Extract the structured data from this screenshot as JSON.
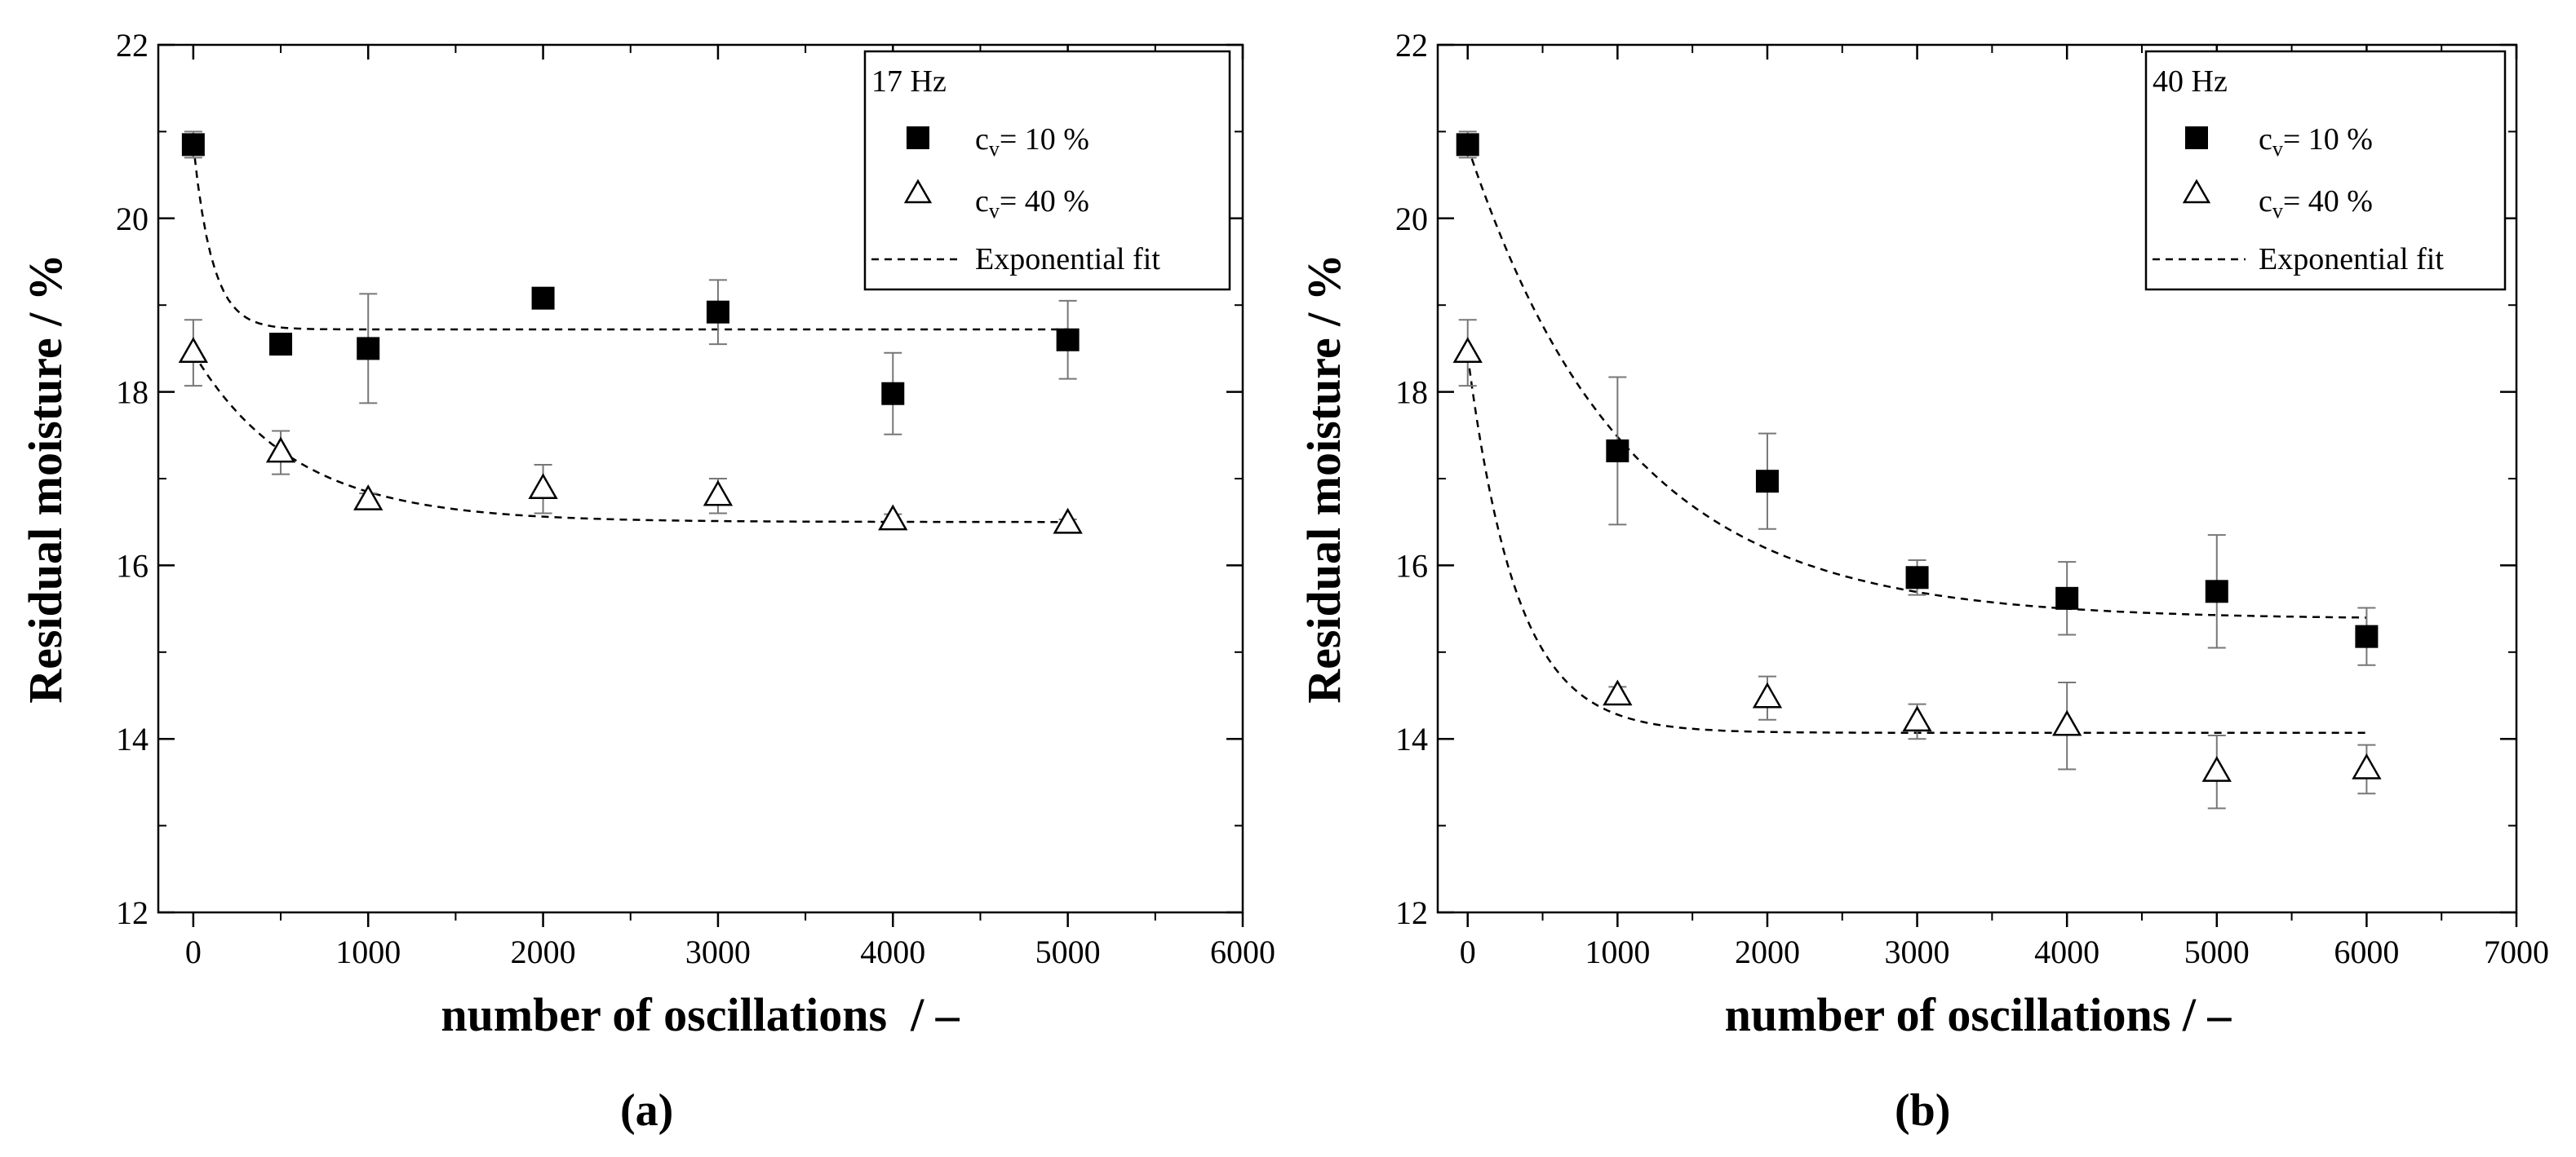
{
  "chart_data": [
    {
      "type": "scatter",
      "panel_label": "(a)",
      "xlabel": "number of oscillations  / –",
      "ylabel": "Residual moisture / %",
      "xlim": [
        -200,
        6000
      ],
      "ylim": [
        12,
        22
      ],
      "x_ticks": [
        0,
        1000,
        2000,
        3000,
        4000,
        5000,
        6000
      ],
      "x_tick_labels": [
        "0",
        "1000",
        "2000",
        "3000",
        "4000",
        "5000",
        "6000"
      ],
      "y_ticks": [
        12,
        14,
        16,
        18,
        20,
        22
      ],
      "y_tick_labels": [
        "12",
        "14",
        "16",
        "18",
        "20",
        "22"
      ],
      "legend": {
        "title": "17 Hz",
        "placement": "top-right",
        "entries": [
          {
            "symbol": "c",
            "sub": "v",
            "text": "= 10 %",
            "marker": "square"
          },
          {
            "symbol": "c",
            "sub": "v",
            "text": "= 40 %",
            "marker": "triangle"
          },
          {
            "text": "Exponential fit",
            "marker": "dashed-line"
          }
        ]
      },
      "series": [
        {
          "name": "cv = 10 %",
          "marker": "square-filled",
          "x": [
            0,
            500,
            1000,
            2000,
            3000,
            4000,
            5000
          ],
          "y": [
            20.85,
            18.55,
            18.5,
            19.08,
            18.92,
            17.98,
            18.6
          ],
          "err": [
            0.15,
            0.0,
            0.63,
            0.0,
            0.37,
            0.47,
            0.45
          ]
        },
        {
          "name": "cv = 40 %",
          "marker": "triangle-open",
          "x": [
            0,
            500,
            1000,
            2000,
            3000,
            4000,
            5000
          ],
          "y": [
            18.45,
            17.3,
            16.75,
            16.88,
            16.8,
            16.52,
            16.48
          ],
          "err": [
            0.38,
            0.25,
            0.08,
            0.28,
            0.2,
            0.07,
            0.05
          ]
        }
      ],
      "fits": [
        {
          "name": "Exponential fit (cv = 10 %)",
          "y0": 18.72,
          "A": 2.13,
          "tau": 110,
          "x_range": [
            0,
            5000
          ]
        },
        {
          "name": "Exponential fit (cv = 40 %)",
          "y0": 16.5,
          "A": 1.95,
          "tau": 580,
          "x_range": [
            0,
            5000
          ]
        }
      ]
    },
    {
      "type": "scatter",
      "panel_label": "(b)",
      "xlabel": "number of oscillations / –",
      "ylabel": "Residual moisture / %",
      "xlim": [
        -200,
        7000
      ],
      "ylim": [
        12,
        22
      ],
      "x_ticks": [
        0,
        1000,
        2000,
        3000,
        4000,
        5000,
        6000,
        7000
      ],
      "x_tick_labels": [
        "0",
        "1000",
        "2000",
        "3000",
        "4000",
        "5000",
        "6000",
        "7000"
      ],
      "y_ticks": [
        12,
        14,
        16,
        18,
        20,
        22
      ],
      "y_tick_labels": [
        "12",
        "14",
        "16",
        "18",
        "20",
        "22"
      ],
      "legend": {
        "title": "40 Hz",
        "placement": "top-right",
        "entries": [
          {
            "symbol": "c",
            "sub": "v",
            "text": "= 10 %",
            "marker": "square"
          },
          {
            "symbol": "c",
            "sub": "v",
            "text": "= 40 %",
            "marker": "triangle"
          },
          {
            "text": "Exponential fit",
            "marker": "dashed-line"
          }
        ]
      },
      "series": [
        {
          "name": "cv = 10 %",
          "marker": "square-filled",
          "x": [
            0,
            1000,
            2000,
            3000,
            4000,
            5000,
            6000
          ],
          "y": [
            20.85,
            17.32,
            16.97,
            15.86,
            15.62,
            15.7,
            15.18
          ],
          "err": [
            0.15,
            0.85,
            0.55,
            0.2,
            0.42,
            0.65,
            0.33
          ]
        },
        {
          "name": "cv = 40 %",
          "marker": "triangle-open",
          "x": [
            0,
            1000,
            2000,
            3000,
            4000,
            5000,
            6000
          ],
          "y": [
            18.45,
            14.5,
            14.47,
            14.2,
            14.15,
            13.62,
            13.65
          ],
          "err": [
            0.38,
            0.1,
            0.25,
            0.2,
            0.5,
            0.42,
            0.28
          ]
        }
      ],
      "fits": [
        {
          "name": "Exponential fit (cv = 10 %)",
          "y0": 15.38,
          "A": 5.45,
          "tau": 1050,
          "x_range": [
            0,
            6000
          ]
        },
        {
          "name": "Exponential fit (cv = 40 %)",
          "y0": 14.07,
          "A": 4.35,
          "tau": 330,
          "x_range": [
            0,
            6000
          ]
        }
      ]
    }
  ]
}
